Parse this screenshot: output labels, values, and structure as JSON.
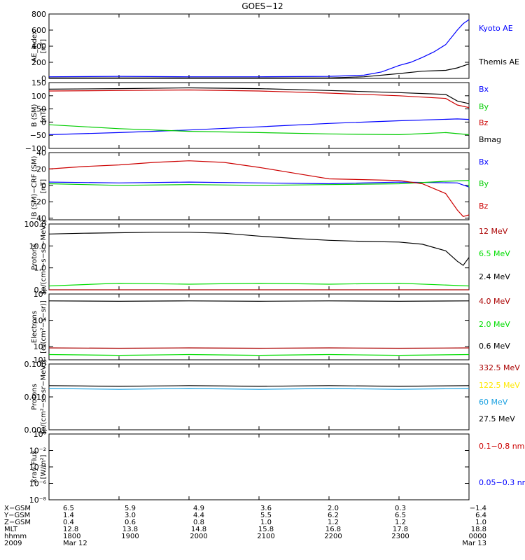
{
  "title": "GOES−12",
  "colors": {
    "black": "#000000",
    "blue": "#0000ff",
    "red": "#cc0000",
    "green": "#00cc00",
    "lime": "#00dd00",
    "darkred": "#aa0000",
    "yellow": "#ffe800",
    "cyan": "#1aa0e0"
  },
  "x_range": [
    1800,
    2400
  ],
  "x_ticks": [
    1800,
    1900,
    2000,
    2100,
    2200,
    2300,
    2400
  ],
  "orbit_table": {
    "rows": [
      {
        "label": "X−GSM",
        "values": [
          "6.5",
          "5.9",
          "4.9",
          "3.6",
          "2.0",
          "0.3",
          "−1.4"
        ]
      },
      {
        "label": "Y−GSM",
        "values": [
          "1.4",
          "3.0",
          "4.4",
          "5.5",
          "6.2",
          "6.5",
          "6.4"
        ]
      },
      {
        "label": "Z−GSM",
        "values": [
          "0.4",
          "0.6",
          "0.8",
          "1.0",
          "1.2",
          "1.2",
          "1.0"
        ]
      },
      {
        "label": "MLT",
        "values": [
          "12.8",
          "13.8",
          "14.8",
          "15.8",
          "16.8",
          "17.8",
          "18.8"
        ]
      },
      {
        "label": "hhmm",
        "values": [
          "1800",
          "1900",
          "2000",
          "2100",
          "2200",
          "2300",
          "0000"
        ]
      },
      {
        "label": "2009",
        "values": [
          "Mar 12",
          "",
          "",
          "",
          "",
          "",
          "Mar 13"
        ]
      }
    ]
  },
  "chart_data": [
    {
      "type": "line",
      "ylabel": [
        "AE_index",
        "[nT]"
      ],
      "scale": "linear",
      "ylim": [
        0,
        800
      ],
      "yticks": [
        0,
        200,
        400,
        600,
        800
      ],
      "series": [
        {
          "name": "Kyoto AE",
          "color": "blue",
          "x": [
            1800,
            1900,
            2000,
            2100,
            2200,
            2230,
            2245,
            2300,
            2310,
            2320,
            2330,
            2340,
            2350,
            2355,
            2400
          ],
          "y": [
            20,
            25,
            20,
            20,
            25,
            40,
            80,
            160,
            200,
            260,
            330,
            420,
            600,
            680,
            730
          ]
        },
        {
          "name": "Themis AE",
          "color": "black",
          "x": [
            1800,
            1900,
            2000,
            2100,
            2200,
            2230,
            2300,
            2320,
            2340,
            2350,
            2400
          ],
          "y": [
            5,
            5,
            5,
            5,
            5,
            20,
            60,
            90,
            100,
            130,
            180
          ]
        }
      ]
    },
    {
      "type": "line",
      "ylabel": [
        "B (SM)",
        "[nT]"
      ],
      "scale": "linear",
      "ylim": [
        -100,
        150
      ],
      "yticks": [
        -100,
        -50,
        0,
        50,
        100,
        150
      ],
      "series": [
        {
          "name": "Bx",
          "color": "blue",
          "x": [
            1800,
            1900,
            2000,
            2100,
            2200,
            2300,
            2350,
            2400
          ],
          "y": [
            -48,
            -40,
            -30,
            -18,
            -5,
            5,
            12,
            10
          ]
        },
        {
          "name": "By",
          "color": "green",
          "x": [
            1800,
            1900,
            2000,
            2100,
            2200,
            2300,
            2340,
            2400
          ],
          "y": [
            -10,
            -25,
            -35,
            -40,
            -45,
            -48,
            -40,
            -48
          ]
        },
        {
          "name": "Bz",
          "color": "red",
          "x": [
            1800,
            1900,
            2000,
            2100,
            2200,
            2300,
            2340,
            2350,
            2400
          ],
          "y": [
            118,
            120,
            122,
            118,
            110,
            100,
            90,
            65,
            55
          ]
        },
        {
          "name": "Bmag",
          "color": "black",
          "x": [
            1800,
            1900,
            2000,
            2100,
            2200,
            2300,
            2340,
            2350,
            2400
          ],
          "y": [
            125,
            127,
            130,
            127,
            120,
            112,
            105,
            80,
            70
          ]
        }
      ]
    },
    {
      "type": "line",
      "ylabel": [
        "B (SM)−CRF (SM)",
        "[nT]"
      ],
      "scale": "linear",
      "ylim": [
        -42,
        40
      ],
      "yticks": [
        -40,
        -20,
        0,
        20,
        40
      ],
      "series": [
        {
          "name": "Bx",
          "color": "blue",
          "x": [
            1800,
            1900,
            2000,
            2100,
            2200,
            2300,
            2350,
            2400
          ],
          "y": [
            4,
            3,
            4,
            3,
            2,
            4,
            3,
            -2
          ]
        },
        {
          "name": "By",
          "color": "green",
          "x": [
            1800,
            1900,
            2000,
            2100,
            2200,
            2300,
            2340,
            2360,
            2400
          ],
          "y": [
            2,
            0,
            1,
            0,
            1,
            2,
            5,
            6,
            -2
          ]
        },
        {
          "name": "Bz",
          "color": "red",
          "x": [
            1800,
            1830,
            1900,
            1930,
            2000,
            2030,
            2100,
            2130,
            2200,
            2300,
            2320,
            2340,
            2350,
            2355,
            2400
          ],
          "y": [
            20,
            23,
            25,
            28,
            30,
            28,
            22,
            15,
            8,
            6,
            2,
            -10,
            -30,
            -38,
            -36
          ]
        }
      ]
    },
    {
      "type": "line",
      "ylabel": [
        "Protons",
        "[p/(cm²−s−sr−MeV)]"
      ],
      "scale": "log",
      "ylim": [
        0.1,
        100
      ],
      "yticks": [
        0.1,
        1.0,
        10.0,
        100.0
      ],
      "ytick_labels": [
        "0.1",
        "1.0",
        "10.0",
        "100.0"
      ],
      "series": [
        {
          "name": "12 MeV",
          "color": "darkred",
          "x": [
            1800,
            1900,
            2000,
            2100,
            2200,
            2300,
            2400
          ],
          "y": [
            0.1,
            0.1,
            0.1,
            0.1,
            0.1,
            0.1,
            0.1
          ]
        },
        {
          "name": "6.5 MeV",
          "color": "lime",
          "x": [
            1800,
            1900,
            2000,
            2100,
            2200,
            2300,
            2400
          ],
          "y": [
            0.15,
            0.2,
            0.18,
            0.2,
            0.18,
            0.2,
            0.15
          ]
        },
        {
          "name": "2.4 MeV",
          "color": "black",
          "x": [
            1800,
            1830,
            1900,
            1930,
            2000,
            2030,
            2100,
            2130,
            2200,
            2230,
            2300,
            2320,
            2340,
            2350,
            2355,
            2400
          ],
          "y": [
            35,
            38,
            40,
            42,
            42,
            38,
            28,
            22,
            18,
            16,
            15,
            12,
            6,
            2,
            1.3,
            3
          ]
        }
      ]
    },
    {
      "type": "line",
      "ylabel": [
        "Electrons",
        "[e/(cm²−s−sr)]"
      ],
      "scale": "log",
      "ylim": [
        10,
        1000000
      ],
      "yticks": [
        10,
        100,
        10000,
        1000000
      ],
      "ytick_labels": [
        "10¹",
        "10²",
        "10⁴",
        "10⁶"
      ],
      "series": [
        {
          "name": "4.0 MeV",
          "color": "darkred",
          "x": [
            1800,
            1900,
            2000,
            2100,
            2200,
            2300,
            2400
          ],
          "y": [
            80,
            75,
            80,
            75,
            80,
            75,
            80
          ]
        },
        {
          "name": "2.0 MeV",
          "color": "lime",
          "x": [
            1800,
            1900,
            2000,
            2100,
            2200,
            2300,
            2400
          ],
          "y": [
            25,
            22,
            25,
            22,
            25,
            22,
            25
          ]
        },
        {
          "name": "0.6 MeV",
          "color": "black",
          "x": [
            1800,
            1900,
            2000,
            2100,
            2200,
            2300,
            2400
          ],
          "y": [
            300000,
            280000,
            300000,
            280000,
            300000,
            280000,
            300000
          ]
        }
      ]
    },
    {
      "type": "line",
      "ylabel": [
        "Protons",
        "[p/(cm²−s−sr−MeV)]"
      ],
      "scale": "log",
      "ylim": [
        0.001,
        0.1
      ],
      "yticks": [
        0.001,
        0.01,
        0.1
      ],
      "ytick_labels": [
        "0.001",
        "0.010",
        "0.100"
      ],
      "series": [
        {
          "name": "332.5 MeV",
          "color": "darkred",
          "x": [],
          "y": []
        },
        {
          "name": "122.5 MeV",
          "color": "yellow",
          "x": [],
          "y": []
        },
        {
          "name": "60 MeV",
          "color": "cyan",
          "x": [
            1800,
            1900,
            2000,
            2100,
            2200,
            2300,
            2400
          ],
          "y": [
            0.018,
            0.017,
            0.018,
            0.017,
            0.018,
            0.017,
            0.018
          ]
        },
        {
          "name": "27.5 MeV",
          "color": "black",
          "x": [
            1800,
            1900,
            2000,
            2100,
            2200,
            2300,
            2400
          ],
          "y": [
            0.022,
            0.021,
            0.022,
            0.021,
            0.022,
            0.021,
            0.022
          ]
        }
      ]
    },
    {
      "type": "line",
      "ylabel": [
        "Xray  Flux",
        "[W/m²]"
      ],
      "scale": "log",
      "ylim": [
        1e-08,
        1
      ],
      "yticks": [
        1e-08,
        1e-06,
        0.0001,
        0.01,
        1
      ],
      "ytick_labels": [
        "10⁻⁸",
        "10⁻⁶",
        "10⁻⁴",
        "10⁻²",
        "10⁰"
      ],
      "series": [
        {
          "name": "0.1−0.8 nm",
          "color": "red",
          "x": [],
          "y": []
        },
        {
          "name": "0.05−0.3 nm",
          "color": "blue",
          "x": [],
          "y": []
        }
      ]
    }
  ]
}
